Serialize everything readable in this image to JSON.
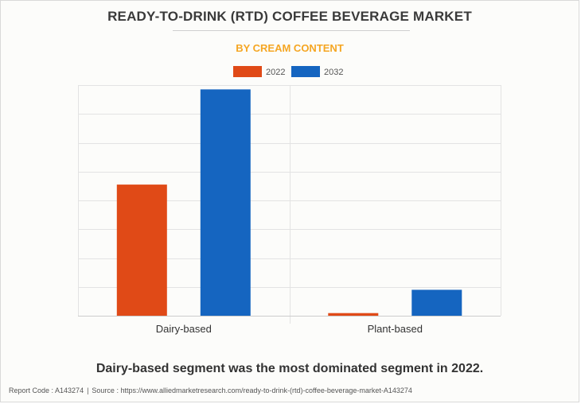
{
  "title": "READY-TO-DRINK (RTD) COFFEE BEVERAGE MARKET",
  "subtitle": "BY CREAM CONTENT",
  "caption": "Dairy-based segment was the most dominated segment in 2022.",
  "footer": {
    "report_code": "Report Code : A143274",
    "separator": "|",
    "source": "Source : https://www.alliedmarketresearch.com/ready-to-drink-(rtd)-coffee-beverage-market-A143274"
  },
  "colors": {
    "series_2022": "#e04a17",
    "series_2032": "#1565c0",
    "grid": "#e3e3e3",
    "axis": "#cccccc",
    "tick_text": "#333333",
    "legend_text": "#555555"
  },
  "chart_data": {
    "type": "bar",
    "title": "READY-TO-DRINK (RTD) COFFEE BEVERAGE MARKET",
    "subtitle": "BY CREAM CONTENT",
    "categories": [
      "Dairy-based",
      "Plant-based"
    ],
    "series": [
      {
        "name": "2022",
        "values": [
          45.5,
          0.9
        ]
      },
      {
        "name": "2032",
        "values": [
          78.5,
          9.0
        ]
      }
    ],
    "xlabel": "",
    "ylabel": "",
    "ylim": [
      0,
      80
    ],
    "ytick_step": 10,
    "yticks_labeled": false,
    "grid": true,
    "legend": "top-center"
  }
}
